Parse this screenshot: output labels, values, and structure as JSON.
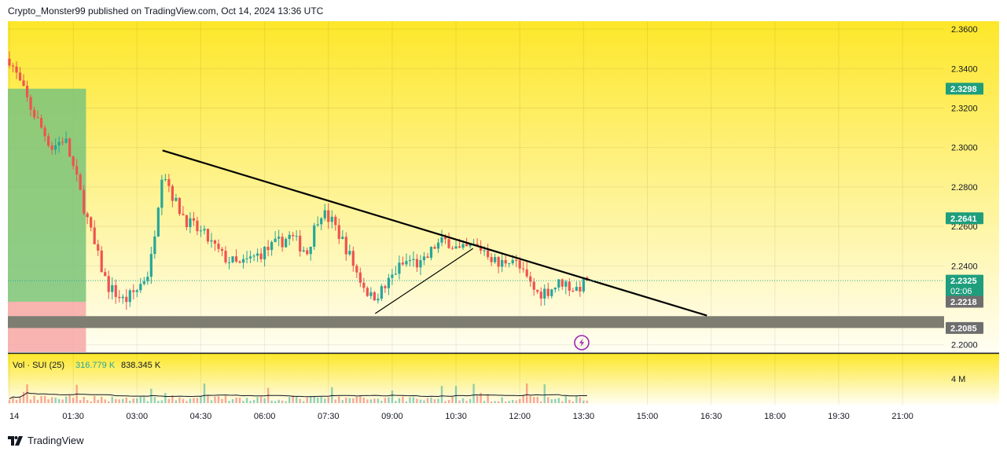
{
  "header": {
    "published": "Crypto_Monster99 published on TradingView.com, Oct 14, 2024 13:36 UTC"
  },
  "footer": {
    "brand": "TradingView",
    "logo_icon": "tradingview-logo-icon"
  },
  "colors": {
    "bg_top": "#fde72a",
    "bg_bottom": "#fffef2",
    "candle_up": "#26a69a",
    "candle_down": "#ef5350",
    "trendline": "#000000",
    "current_price_line": "#26a69a",
    "support_zone": "#7d7d72",
    "target_zone": "#7bc47b",
    "stop_zone": "#f7a7a7",
    "label_green": "#1e9e7c",
    "label_gray": "#6e6e6e",
    "flash_icon": "#9c27b0"
  },
  "price_axis": {
    "ticks": [
      "2.3600",
      "2.3400",
      "2.3200",
      "2.3000",
      "2.2800",
      "2.2600",
      "2.2400",
      "2.2000"
    ],
    "tick_values": [
      2.36,
      2.34,
      2.32,
      2.3,
      2.28,
      2.26,
      2.24,
      2.2
    ],
    "labels": [
      {
        "text": "2.3298",
        "value": 2.3298,
        "style": "green"
      },
      {
        "text": "2.2641",
        "value": 2.2641,
        "style": "green"
      },
      {
        "text": "2.2325",
        "value": 2.2325,
        "style": "green",
        "sub": "02:06"
      },
      {
        "text": "2.2218",
        "value": 2.2218,
        "style": "gray"
      },
      {
        "text": "2.2085",
        "value": 2.2085,
        "style": "gray"
      }
    ]
  },
  "time_axis": {
    "ticks": [
      "14",
      "01:30",
      "03:00",
      "04:30",
      "06:00",
      "07:30",
      "09:00",
      "10:30",
      "12:00",
      "13:30",
      "15:00",
      "16:30",
      "18:00",
      "19:30",
      "21:00"
    ],
    "tick_hours": [
      0,
      1.5,
      3,
      4.5,
      6,
      7.5,
      9,
      10.5,
      12,
      13.5,
      15,
      16.5,
      18,
      19.5,
      21
    ]
  },
  "volume": {
    "legend_title": "Vol · SUI (25)",
    "legend_value_1": "316.779 K",
    "legend_value_2": "838.345 K",
    "axis_tick": "4 M",
    "axis_tick_value": 4000000
  },
  "chart_data": {
    "type": "candlestick",
    "symbol": "SUI",
    "ylim": [
      2.1963,
      2.364
    ],
    "xlim_hours": [
      0,
      22.2
    ],
    "series": [
      {
        "name": "price",
        "hours": [
          0,
          0.5,
          1.0,
          1.3,
          1.6,
          2.0,
          2.3,
          2.7,
          3.0,
          3.3,
          3.6,
          3.9,
          4.2,
          4.6,
          5.0,
          5.4,
          5.8,
          6.2,
          6.6,
          7.0,
          7.3,
          7.6,
          7.9,
          8.2,
          8.5,
          8.8,
          9.1,
          9.4,
          9.7,
          10.0,
          10.3,
          10.6,
          10.9,
          11.2,
          11.5,
          11.8,
          12.1,
          12.4,
          12.7,
          13.0,
          13.3,
          13.6
        ],
        "close": [
          2.345,
          2.32,
          2.3,
          2.305,
          2.282,
          2.25,
          2.23,
          2.222,
          2.228,
          2.238,
          2.29,
          2.272,
          2.262,
          2.255,
          2.245,
          2.24,
          2.245,
          2.25,
          2.255,
          2.247,
          2.268,
          2.262,
          2.25,
          2.235,
          2.224,
          2.228,
          2.238,
          2.243,
          2.24,
          2.25,
          2.253,
          2.247,
          2.25,
          2.248,
          2.24,
          2.245,
          2.235,
          2.226,
          2.228,
          2.232,
          2.228,
          2.2325
        ]
      }
    ],
    "trendline_1": {
      "from": {
        "hour": 3.6,
        "price": 2.2985
      },
      "to": {
        "hour": 16.4,
        "price": 2.2148
      }
    },
    "trendline_2": {
      "from": {
        "hour": 8.6,
        "price": 2.2158
      },
      "to": {
        "hour": 10.9,
        "price": 2.2488
      }
    },
    "support_zone": {
      "from_price": 2.2085,
      "to_price": 2.2145,
      "from_hour": 0,
      "to_hour": 22.2
    },
    "position": {
      "from_hour": 0,
      "to_hour": 1.8,
      "target": 2.3298,
      "entry": 2.2218,
      "stop": 2.1963
    },
    "current_price": 2.2325,
    "volume": {
      "legend": [
        "316.779 K",
        "838.345 K"
      ],
      "ma_period": 25
    }
  }
}
